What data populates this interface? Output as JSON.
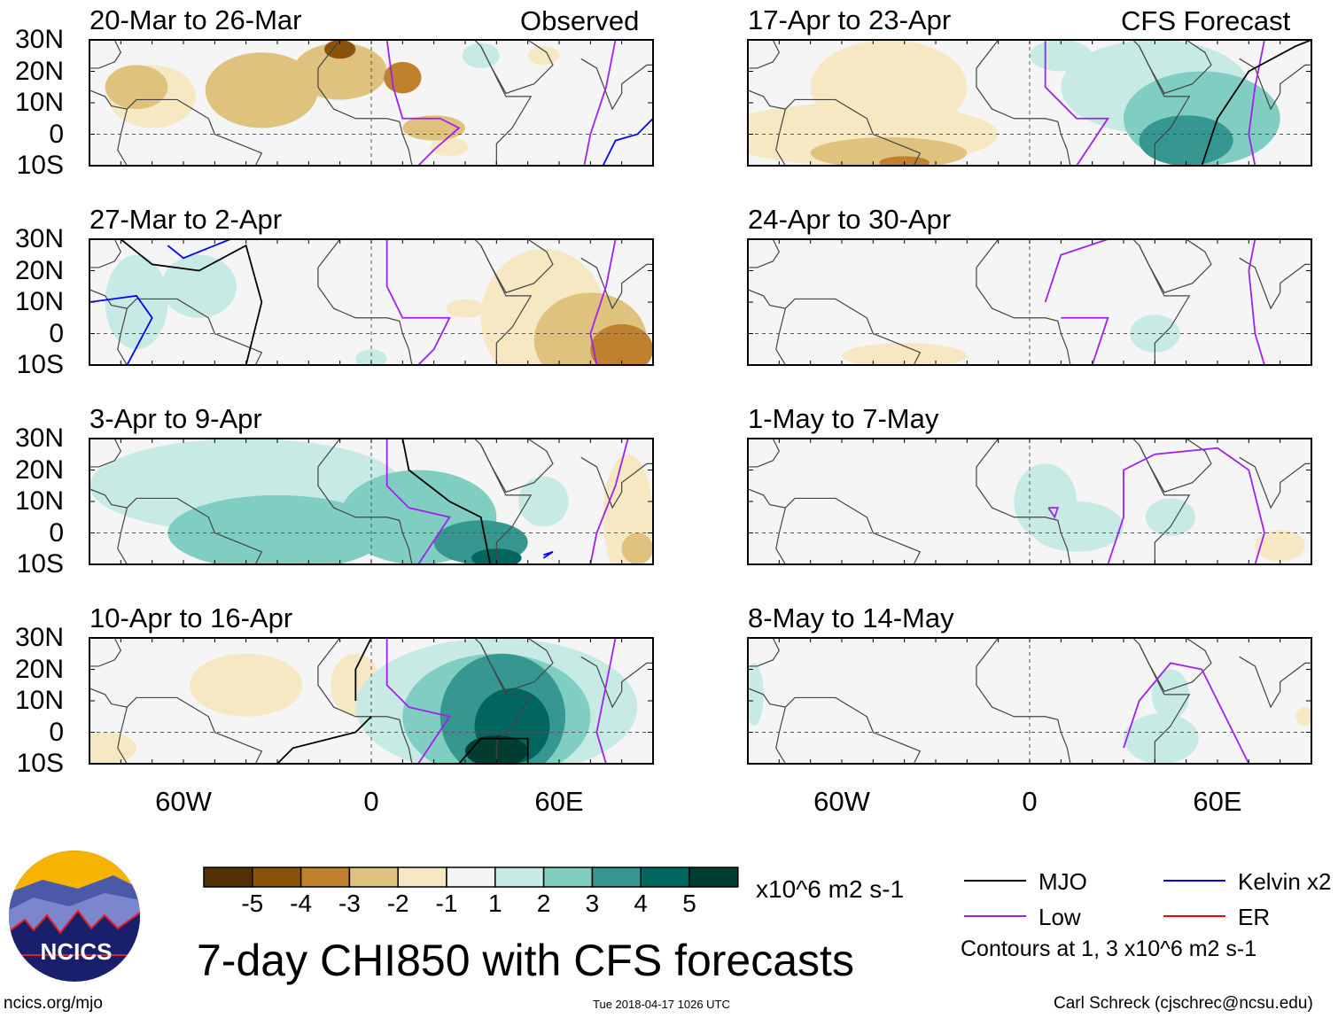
{
  "header": {
    "left_label": "Observed",
    "right_label": "CFS Forecast"
  },
  "panels": [
    {
      "title": "20-Mar to 26-Mar",
      "column": "left",
      "row": 0,
      "regions": [
        [
          -70,
          12,
          14,
          10,
          -1
        ],
        [
          -75,
          15,
          10,
          7,
          -2
        ],
        [
          -35,
          14,
          18,
          12,
          -2
        ],
        [
          -10,
          20,
          15,
          9,
          -2
        ],
        [
          -10,
          27,
          5,
          3,
          -4
        ],
        [
          10,
          18,
          6,
          5,
          -3
        ],
        [
          20,
          2,
          10,
          4,
          -2
        ],
        [
          25,
          -4,
          6,
          3,
          -1
        ],
        [
          35,
          25,
          6,
          4,
          1
        ],
        [
          55,
          25,
          5,
          3,
          -1
        ]
      ],
      "contours": [
        {
          "type": "low",
          "pts": [
            [
              5,
              30
            ],
            [
              7,
              15
            ],
            [
              10,
              5
            ],
            [
              22,
              5
            ],
            [
              28,
              2
            ],
            [
              20,
              -5
            ],
            [
              15,
              -10
            ]
          ]
        },
        {
          "type": "low",
          "pts": [
            [
              68,
              -10
            ],
            [
              70,
              0
            ],
            [
              75,
              15
            ],
            [
              78,
              30
            ]
          ]
        },
        {
          "type": "kelvin",
          "pts": [
            [
              74,
              -10
            ],
            [
              78,
              -2
            ],
            [
              85,
              0
            ],
            [
              90,
              5
            ]
          ]
        }
      ]
    },
    {
      "title": "27-Mar to 2-Apr",
      "column": "left",
      "row": 1,
      "regions": [
        [
          -75,
          10,
          10,
          15,
          1
        ],
        [
          -55,
          15,
          12,
          10,
          1
        ],
        [
          0,
          -8,
          5,
          3,
          1
        ],
        [
          30,
          8,
          6,
          3,
          -1
        ],
        [
          55,
          5,
          20,
          22,
          -1
        ],
        [
          70,
          -2,
          18,
          15,
          -2
        ],
        [
          80,
          -5,
          10,
          8,
          -3
        ]
      ],
      "contours": [
        {
          "type": "low",
          "pts": [
            [
              5,
              30
            ],
            [
              5,
              15
            ],
            [
              10,
              5
            ],
            [
              25,
              5
            ],
            [
              20,
              -5
            ],
            [
              15,
              -10
            ]
          ]
        },
        {
          "type": "low",
          "pts": [
            [
              72,
              -10
            ],
            [
              70,
              0
            ],
            [
              75,
              15
            ],
            [
              78,
              30
            ]
          ]
        },
        {
          "type": "mjo",
          "pts": [
            [
              -80,
              30
            ],
            [
              -70,
              22
            ],
            [
              -55,
              20
            ],
            [
              -40,
              28
            ],
            [
              -35,
              10
            ],
            [
              -40,
              -10
            ]
          ]
        },
        {
          "type": "kelvin",
          "pts": [
            [
              -65,
              28
            ],
            [
              -60,
              24
            ],
            [
              -50,
              28
            ],
            [
              -45,
              30
            ]
          ]
        },
        {
          "type": "kelvin",
          "pts": [
            [
              -90,
              10
            ],
            [
              -75,
              12
            ],
            [
              -70,
              5
            ],
            [
              -78,
              -10
            ]
          ]
        }
      ]
    },
    {
      "title": "3-Apr to 9-Apr",
      "column": "left",
      "row": 2,
      "regions": [
        [
          -40,
          15,
          50,
          15,
          1
        ],
        [
          -30,
          0,
          35,
          12,
          2
        ],
        [
          15,
          5,
          25,
          15,
          2
        ],
        [
          35,
          -3,
          15,
          7,
          3
        ],
        [
          40,
          -8,
          8,
          3,
          4
        ],
        [
          55,
          10,
          8,
          8,
          1
        ],
        [
          82,
          5,
          8,
          20,
          -1
        ],
        [
          85,
          -5,
          5,
          5,
          -2
        ]
      ],
      "contours": [
        {
          "type": "low",
          "pts": [
            [
              5,
              30
            ],
            [
              5,
              15
            ],
            [
              12,
              8
            ],
            [
              25,
              5
            ],
            [
              15,
              -10
            ]
          ]
        },
        {
          "type": "low",
          "pts": [
            [
              70,
              -10
            ],
            [
              72,
              0
            ],
            [
              78,
              15
            ],
            [
              82,
              30
            ]
          ]
        },
        {
          "type": "mjo",
          "pts": [
            [
              10,
              30
            ],
            [
              12,
              20
            ],
            [
              25,
              10
            ],
            [
              35,
              5
            ],
            [
              38,
              -10
            ]
          ]
        },
        {
          "type": "kelvin",
          "pts": [
            [
              55,
              -7
            ],
            [
              58,
              -6
            ],
            [
              55,
              -8
            ]
          ]
        }
      ]
    },
    {
      "title": "10-Apr to 16-Apr",
      "column": "left",
      "row": 3,
      "regions": [
        [
          -40,
          15,
          18,
          10,
          -1
        ],
        [
          -5,
          15,
          8,
          10,
          -1
        ],
        [
          40,
          8,
          45,
          22,
          1
        ],
        [
          40,
          5,
          30,
          20,
          2
        ],
        [
          42,
          5,
          20,
          20,
          3
        ],
        [
          45,
          2,
          12,
          12,
          4
        ],
        [
          40,
          -6,
          10,
          5,
          5
        ],
        [
          -85,
          -5,
          10,
          5,
          -1
        ]
      ],
      "contours": [
        {
          "type": "low",
          "pts": [
            [
              5,
              30
            ],
            [
              5,
              15
            ],
            [
              12,
              8
            ],
            [
              25,
              5
            ],
            [
              15,
              -10
            ]
          ]
        },
        {
          "type": "low",
          "pts": [
            [
              75,
              -10
            ],
            [
              72,
              0
            ],
            [
              75,
              15
            ],
            [
              78,
              30
            ]
          ]
        },
        {
          "type": "mjo",
          "pts": [
            [
              -30,
              -10
            ],
            [
              -25,
              -5
            ],
            [
              -5,
              0
            ],
            [
              0,
              5
            ]
          ]
        },
        {
          "type": "mjo",
          "pts": [
            [
              0,
              30
            ],
            [
              -5,
              20
            ],
            [
              -5,
              10
            ]
          ]
        },
        {
          "type": "mjo",
          "pts": [
            [
              28,
              -10
            ],
            [
              35,
              -2
            ],
            [
              50,
              -2
            ],
            [
              50,
              -10
            ]
          ]
        }
      ]
    },
    {
      "title": "17-Apr to 23-Apr",
      "column": "right",
      "row": 0,
      "regions": [
        [
          -45,
          15,
          25,
          15,
          -1
        ],
        [
          -55,
          0,
          45,
          10,
          -1
        ],
        [
          -45,
          -6,
          25,
          5,
          -2
        ],
        [
          -40,
          -9,
          8,
          2,
          -3
        ],
        [
          40,
          15,
          30,
          15,
          1
        ],
        [
          55,
          5,
          25,
          15,
          2
        ],
        [
          50,
          -2,
          15,
          8,
          3
        ],
        [
          10,
          25,
          10,
          5,
          1
        ]
      ],
      "contours": [
        {
          "type": "low",
          "pts": [
            [
              5,
              30
            ],
            [
              5,
              15
            ],
            [
              15,
              5
            ],
            [
              25,
              5
            ],
            [
              15,
              -10
            ]
          ]
        },
        {
          "type": "low",
          "pts": [
            [
              72,
              -10
            ],
            [
              70,
              0
            ],
            [
              72,
              15
            ],
            [
              75,
              30
            ]
          ]
        },
        {
          "type": "mjo",
          "pts": [
            [
              55,
              -10
            ],
            [
              60,
              5
            ],
            [
              70,
              20
            ],
            [
              85,
              28
            ],
            [
              90,
              30
            ]
          ]
        }
      ]
    },
    {
      "title": "24-Apr to 30-Apr",
      "column": "right",
      "row": 1,
      "regions": [
        [
          -40,
          -7,
          20,
          4,
          -1
        ],
        [
          40,
          0,
          8,
          6,
          1
        ]
      ],
      "contours": [
        {
          "type": "low",
          "pts": [
            [
              5,
              10
            ],
            [
              10,
              25
            ],
            [
              25,
              30
            ]
          ]
        },
        {
          "type": "low",
          "pts": [
            [
              10,
              5
            ],
            [
              25,
              5
            ],
            [
              20,
              -10
            ]
          ]
        },
        {
          "type": "low",
          "pts": [
            [
              75,
              -10
            ],
            [
              72,
              0
            ],
            [
              70,
              20
            ],
            [
              72,
              30
            ]
          ]
        }
      ]
    },
    {
      "title": "1-May to 7-May",
      "column": "right",
      "row": 2,
      "regions": [
        [
          5,
          10,
          10,
          12,
          1
        ],
        [
          15,
          2,
          15,
          8,
          1
        ],
        [
          45,
          5,
          8,
          6,
          1
        ],
        [
          80,
          -4,
          8,
          5,
          -1
        ]
      ],
      "contours": [
        {
          "type": "low",
          "pts": [
            [
              25,
              -10
            ],
            [
              30,
              5
            ],
            [
              30,
              20
            ],
            [
              40,
              25
            ],
            [
              60,
              27
            ],
            [
              70,
              20
            ],
            [
              75,
              0
            ],
            [
              72,
              -10
            ]
          ]
        },
        {
          "type": "low",
          "pts": [
            [
              6,
              8
            ],
            [
              9,
              8
            ],
            [
              8,
              5
            ],
            [
              6,
              8
            ]
          ]
        }
      ]
    },
    {
      "title": "8-May to 14-May",
      "column": "right",
      "row": 3,
      "regions": [
        [
          -88,
          12,
          3,
          10,
          1
        ],
        [
          42,
          -2,
          12,
          8,
          1
        ],
        [
          45,
          12,
          6,
          8,
          1
        ],
        [
          88,
          5,
          3,
          3,
          -1
        ]
      ],
      "contours": [
        {
          "type": "low",
          "pts": [
            [
              30,
              -5
            ],
            [
              35,
              10
            ],
            [
              45,
              22
            ],
            [
              55,
              20
            ],
            [
              65,
              0
            ],
            [
              70,
              -10
            ]
          ]
        }
      ]
    }
  ],
  "axes": {
    "lat_labels": [
      "30N",
      "20N",
      "10N",
      "0",
      "10S"
    ],
    "lon_labels": [
      "60W",
      "0",
      "60E"
    ]
  },
  "colorbar": {
    "colors": [
      "#543005",
      "#8c510a",
      "#bf812d",
      "#dfc27d",
      "#f6e8c3",
      "#f5f5f5",
      "#c7eae5",
      "#80cdc1",
      "#35978f",
      "#01665e",
      "#003c30"
    ],
    "ticks": [
      "-5",
      "-4",
      "-3",
      "-2",
      "-1",
      "1",
      "2",
      "3",
      "4",
      "5"
    ],
    "units": "x10^6 m2 s-1"
  },
  "legend": {
    "items": [
      {
        "label": "MJO",
        "color": "#000000"
      },
      {
        "label": "Kelvin x2",
        "color": "#0000ff"
      },
      {
        "label": "Low",
        "color": "#a020f0"
      },
      {
        "label": "ER",
        "color": "#ff0000"
      }
    ],
    "note": "Contours at 1, 3 x10^6 m2 s-1"
  },
  "title": "7-day CHI850 with CFS forecasts",
  "footer": {
    "left": "ncics.org/mjo",
    "center": "Tue 2018-04-17 1026 UTC",
    "right": "Carl Schreck (cjschrec@ncsu.edu)"
  },
  "logo": {
    "text": "NCICS"
  }
}
